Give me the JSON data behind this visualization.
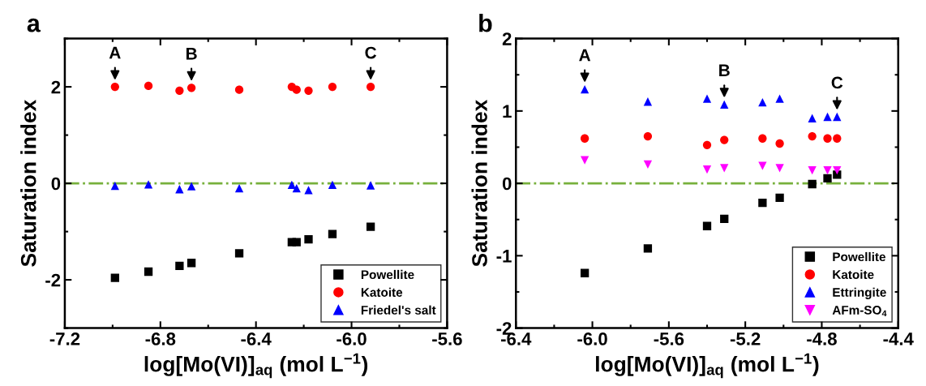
{
  "chart_data": [
    {
      "type": "scatter",
      "title": "a",
      "xlabel": "log[Mo(VI)]$_{aq}$ (mol L$^{−1}$)",
      "ylabel": "Saturation index",
      "x": [
        -6.99,
        -6.85,
        -6.72,
        -6.67,
        -6.47,
        -6.25,
        -6.23,
        -6.18,
        -6.08,
        -5.92
      ],
      "series": [
        {
          "name": "Powellite",
          "color": "#000000",
          "marker": "square",
          "values": [
            -1.96,
            -1.83,
            -1.71,
            -1.65,
            -1.45,
            -1.22,
            -1.22,
            -1.16,
            -1.05,
            -0.9
          ]
        },
        {
          "name": "Katoite",
          "color": "#ff0000",
          "marker": "circle",
          "values": [
            2.0,
            2.02,
            1.92,
            1.98,
            1.94,
            2.0,
            1.94,
            1.92,
            2.0,
            2.0
          ]
        },
        {
          "name": "Friedel's salt",
          "color": "#0000ff",
          "marker": "triangle",
          "values": [
            -0.05,
            -0.02,
            -0.12,
            -0.06,
            -0.1,
            -0.03,
            -0.1,
            -0.14,
            -0.03,
            -0.04
          ]
        }
      ],
      "xlim": [
        -7.2,
        -5.6
      ],
      "xticks": [
        -7.2,
        -6.8,
        -6.4,
        {
          "value": -6.0,
          "label": "-6.0"
        },
        -5.6
      ],
      "ylim": [
        -3,
        3
      ],
      "yticks": [
        -2,
        0,
        2
      ],
      "ref_lines": [
        {
          "axis": "y",
          "value": 0,
          "color": "#77b03c",
          "line_style": "dashdot"
        }
      ],
      "annotations": [
        {
          "text": "A",
          "x": -6.99,
          "y": 2.0
        },
        {
          "text": "B",
          "x": -6.67,
          "y": 1.98
        },
        {
          "text": "C",
          "x": -5.92,
          "y": 2.0
        }
      ],
      "legend": "bottom right",
      "grid": false
    },
    {
      "type": "scatter",
      "title": "b",
      "xlabel": "log[Mo(VI)]$_{aq}$ (mol L$^{−1}$)",
      "ylabel": "Saturation index",
      "x": [
        -6.04,
        -5.71,
        -5.4,
        -5.31,
        -5.11,
        -5.02,
        -4.85,
        -4.77,
        -4.72
      ],
      "series": [
        {
          "name": "Powellite",
          "color": "#000000",
          "marker": "square",
          "values": [
            -1.24,
            -0.9,
            -0.59,
            -0.49,
            -0.27,
            -0.2,
            -0.01,
            0.07,
            0.12
          ]
        },
        {
          "name": "Katoite",
          "color": "#ff0000",
          "marker": "circle",
          "values": [
            0.62,
            0.65,
            0.53,
            0.6,
            0.62,
            0.55,
            0.65,
            0.62,
            0.62
          ]
        },
        {
          "name": "Ettringite",
          "color": "#0000ff",
          "marker": "triangle",
          "values": [
            1.3,
            1.13,
            1.17,
            1.09,
            1.12,
            1.17,
            0.9,
            0.92,
            0.92
          ]
        },
        {
          "name": "AFm-SO$_{4}$",
          "color": "#ff00ff",
          "marker": "triangle_down",
          "values": [
            0.32,
            0.26,
            0.19,
            0.21,
            0.24,
            0.21,
            0.18,
            0.18,
            0.18
          ]
        }
      ],
      "xlim": [
        -6.4,
        -4.4
      ],
      "xticks": [
        -6.4,
        {
          "value": -6.0,
          "label": "-6.0"
        },
        -5.6,
        -5.2,
        -4.8,
        -4.4
      ],
      "ylim": [
        -2,
        2
      ],
      "yticks": [
        -2,
        -1,
        0,
        1,
        2
      ],
      "ref_lines": [
        {
          "axis": "y",
          "value": 0,
          "color": "#77b03c",
          "line_style": "dashdot"
        }
      ],
      "annotations": [
        {
          "text": "A",
          "x": -6.04,
          "y": 1.3
        },
        {
          "text": "B",
          "x": -5.31,
          "y": 1.09
        },
        {
          "text": "C",
          "x": -4.72,
          "y": 0.92
        }
      ],
      "legend": "bottom right",
      "grid": false
    }
  ]
}
